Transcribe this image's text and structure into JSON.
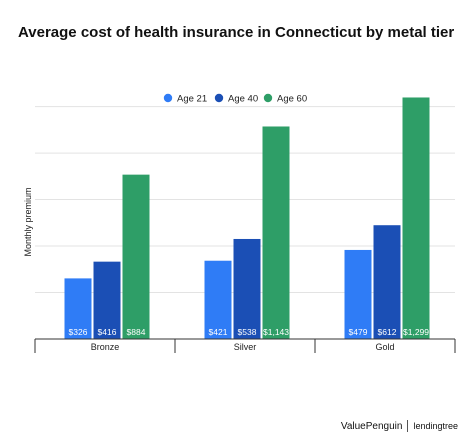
{
  "chart_data": {
    "type": "bar",
    "title": "Average cost of health insurance in Connecticut by metal tier",
    "ylabel": "Monthly premium",
    "xlabel": "",
    "categories": [
      "Bronze",
      "Silver",
      "Gold"
    ],
    "series": [
      {
        "name": "Age 21",
        "color": "#2f7cf6",
        "values": [
          326,
          421,
          479
        ],
        "labels": [
          "$326",
          "$421",
          "$479"
        ]
      },
      {
        "name": "Age 40",
        "color": "#1b4fb5",
        "values": [
          416,
          538,
          612
        ],
        "labels": [
          "$416",
          "$538",
          "$612"
        ]
      },
      {
        "name": "Age 60",
        "color": "#2e9e67",
        "values": [
          884,
          1143,
          1299
        ],
        "labels": [
          "$884",
          "$1,143",
          "$1,299"
        ]
      }
    ],
    "ylim": [
      0,
      1350
    ],
    "grid": true,
    "legend": "top-center"
  },
  "branding": {
    "logo_left": "ValuePenguin",
    "logo_right": "lendingtree"
  }
}
